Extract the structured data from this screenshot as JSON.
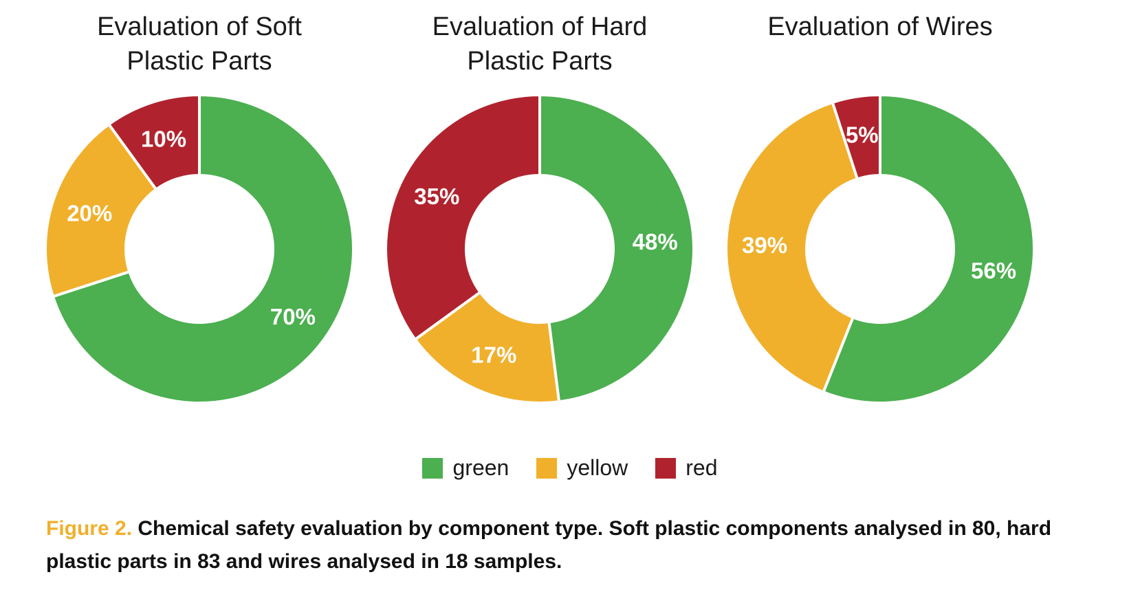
{
  "chart_data": [
    {
      "type": "pie",
      "title": "Evaluation of Soft\nPlastic Parts",
      "categories": [
        "green",
        "yellow",
        "red"
      ],
      "values": [
        70,
        20,
        10
      ],
      "labels": [
        "70%",
        "20%",
        "10%"
      ]
    },
    {
      "type": "pie",
      "title": "Evaluation of Hard\nPlastic Parts",
      "categories": [
        "green",
        "yellow",
        "red"
      ],
      "values": [
        48,
        17,
        35
      ],
      "labels": [
        "48%",
        "17%",
        "35%"
      ]
    },
    {
      "type": "pie",
      "title": "Evaluation of Wires",
      "categories": [
        "green",
        "yellow",
        "red"
      ],
      "values": [
        56,
        39,
        5
      ],
      "labels": [
        "56%",
        "39%",
        "5%"
      ]
    }
  ],
  "colors": {
    "green": "#4caf50",
    "yellow": "#f0b02c",
    "red": "#b0232e"
  },
  "legend": {
    "items": [
      {
        "label": "green",
        "color": "#4caf50"
      },
      {
        "label": "yellow",
        "color": "#f0b02c"
      },
      {
        "label": "red",
        "color": "#b0232e"
      }
    ]
  },
  "caption": {
    "figure_label": "Figure 2.",
    "text": "Chemical safety evaluation by component type. Soft plastic components analysed in 80, hard plastic parts in 83 and wires analysed in 18 samples."
  }
}
